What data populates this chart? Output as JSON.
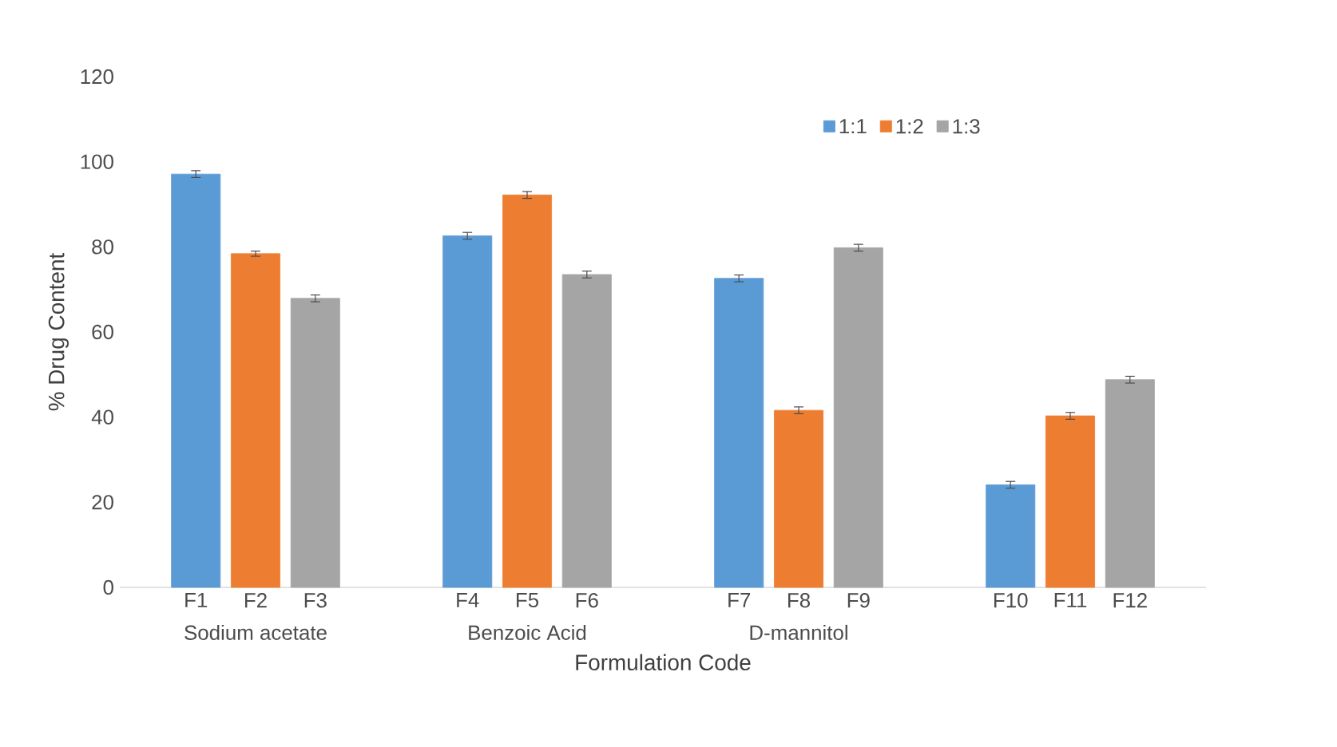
{
  "chart_data": {
    "type": "bar",
    "xlabel": "Formulation Code",
    "ylabel": "% Drug Content",
    "categories": [
      "Sodium acetate",
      "Benzoic Acid",
      "D-mannitol",
      null
    ],
    "series": [
      {
        "name": "1:1",
        "color": "#5b9bd5",
        "values": [
          97.1,
          82.6,
          72.6,
          24.1
        ],
        "errors": [
          0.8,
          0.8,
          0.8,
          0.8
        ]
      },
      {
        "name": "1:2",
        "color": "#ed7d31",
        "values": [
          78.4,
          92.2,
          41.6,
          40.3
        ],
        "errors": [
          0.6,
          0.8,
          0.8,
          0.8
        ]
      },
      {
        "name": "1:3",
        "color": "#a5a5a5",
        "values": [
          67.9,
          73.5,
          79.8,
          48.8
        ],
        "errors": [
          0.8,
          0.8,
          0.8,
          0.8
        ]
      }
    ],
    "annotations": [
      "F1",
      "F2",
      "F3",
      "F4",
      "F5",
      "F6",
      "F7",
      "F8",
      "F9",
      "F10",
      "F11",
      "F12"
    ],
    "ylim": [
      0,
      120
    ],
    "yticks": [
      0,
      20,
      40,
      60,
      80,
      100,
      120
    ],
    "grid": false,
    "legend": "top right"
  }
}
